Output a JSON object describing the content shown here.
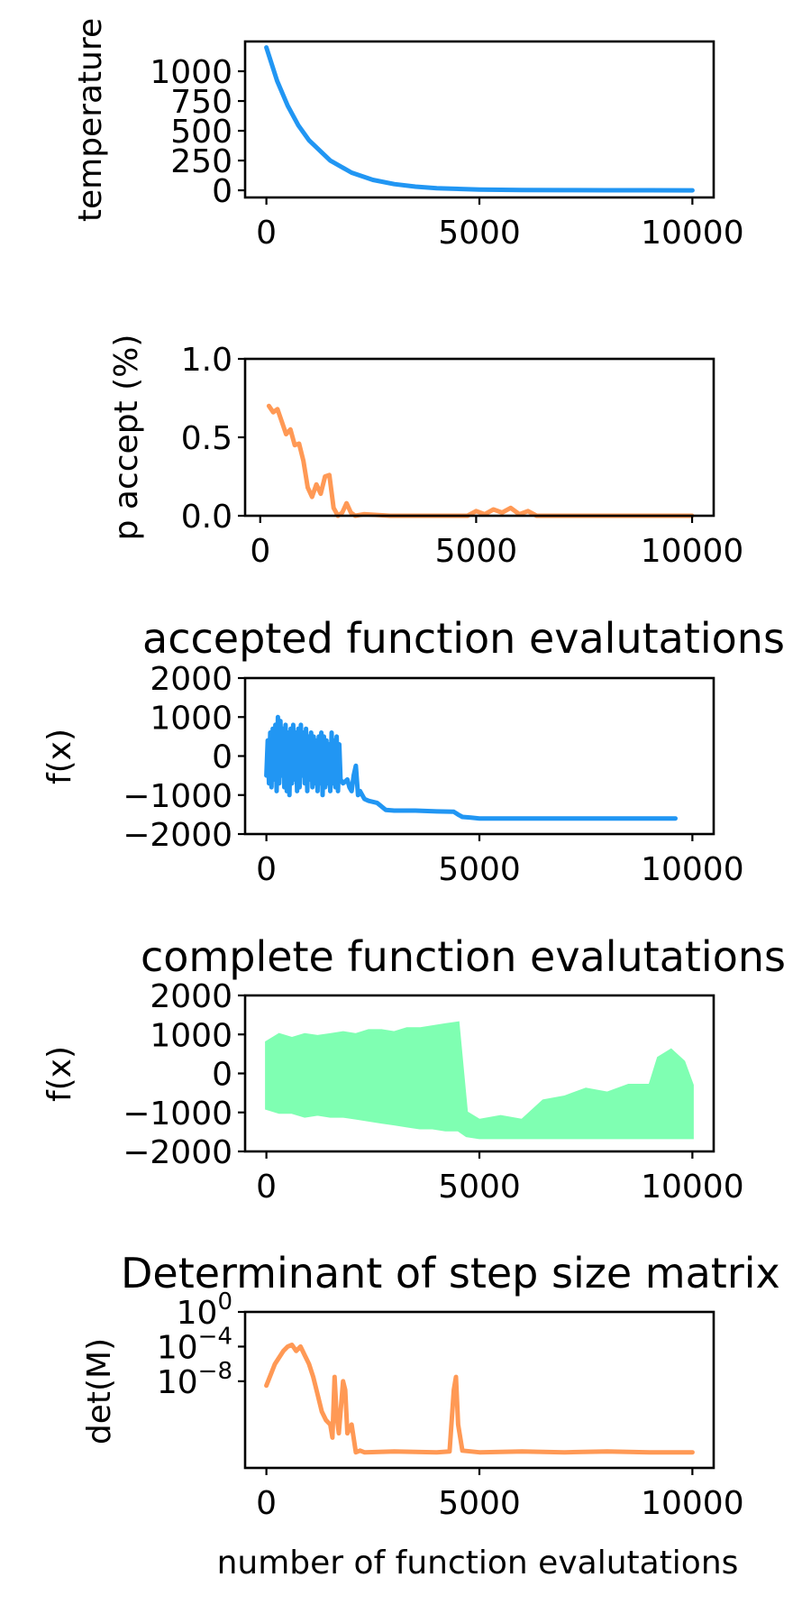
{
  "chart_data": [
    {
      "type": "line",
      "title": "",
      "xlabel": "",
      "ylabel": "temperature",
      "xlim": [
        -500,
        10500
      ],
      "ylim": [
        -60,
        1250
      ],
      "x_ticks": [
        0,
        5000,
        10000
      ],
      "x_tick_labels": [
        "0",
        "5000",
        "10000"
      ],
      "y_ticks": [
        0,
        250,
        500,
        750,
        1000
      ],
      "y_tick_labels": [
        "0",
        "250",
        "500",
        "750",
        "1000"
      ],
      "series": [
        {
          "color": "#2196F3",
          "x": [
            0,
            250,
            500,
            750,
            1000,
            1500,
            2000,
            2500,
            3000,
            3500,
            4000,
            5000,
            6000,
            7000,
            8000,
            9000,
            10000
          ],
          "y": [
            1200,
            920,
            710,
            545,
            420,
            250,
            148,
            88,
            52,
            31,
            18,
            7,
            3,
            1,
            0.5,
            0.2,
            0.1
          ]
        }
      ]
    },
    {
      "type": "line",
      "title": "",
      "xlabel": "",
      "ylabel": "p accept (%)",
      "xlim": [
        -350,
        10500
      ],
      "ylim": [
        0,
        1.0
      ],
      "x_ticks": [
        0,
        5000,
        10000
      ],
      "x_tick_labels": [
        "0",
        "5000",
        "10000"
      ],
      "y_ticks": [
        0.0,
        0.5,
        1.0
      ],
      "y_tick_labels": [
        "0.0",
        "0.5",
        "1.0"
      ],
      "series": [
        {
          "color": "#FF9955",
          "x": [
            200,
            300,
            400,
            500,
            600,
            700,
            800,
            900,
            1000,
            1100,
            1200,
            1300,
            1400,
            1500,
            1600,
            1700,
            1800,
            1900,
            2000,
            2100,
            2200,
            2400,
            3000,
            4000,
            4800,
            5000,
            5200,
            5400,
            5600,
            5800,
            6000,
            6200,
            6400,
            7000,
            8000,
            9000,
            10000
          ],
          "y": [
            0.7,
            0.66,
            0.68,
            0.6,
            0.52,
            0.55,
            0.45,
            0.46,
            0.35,
            0.18,
            0.12,
            0.2,
            0.14,
            0.25,
            0.26,
            0.05,
            0.0,
            0.02,
            0.08,
            0.02,
            0.0,
            0.01,
            0.0,
            0.0,
            0.0,
            0.03,
            0.01,
            0.04,
            0.02,
            0.05,
            0.01,
            0.03,
            0.0,
            0.0,
            0.0,
            0.0,
            0.0
          ]
        }
      ]
    },
    {
      "type": "line",
      "title": "accepted function evalutations",
      "xlabel": "",
      "ylabel": "f(x)",
      "xlim": [
        -500,
        10500
      ],
      "ylim": [
        -2000,
        2000
      ],
      "x_ticks": [
        0,
        5000,
        10000
      ],
      "x_tick_labels": [
        "0",
        "5000",
        "10000"
      ],
      "y_ticks": [
        -2000,
        -1000,
        0,
        1000,
        2000
      ],
      "y_tick_labels": [
        "−2000",
        "−1000",
        "0",
        "1000",
        "2000"
      ],
      "series": [
        {
          "color": "#2196F3",
          "x": [
            0,
            30,
            60,
            90,
            120,
            150,
            180,
            210,
            240,
            270,
            300,
            330,
            360,
            390,
            420,
            450,
            480,
            510,
            540,
            570,
            600,
            630,
            660,
            690,
            720,
            750,
            780,
            810,
            840,
            870,
            900,
            930,
            960,
            990,
            1020,
            1050,
            1080,
            1110,
            1140,
            1170,
            1200,
            1230,
            1260,
            1290,
            1320,
            1350,
            1380,
            1410,
            1440,
            1470,
            1500,
            1530,
            1560,
            1590,
            1620,
            1650,
            1680,
            1710,
            1740,
            1800,
            1900,
            1950,
            2000,
            2050,
            2100,
            2150,
            2200,
            2300,
            2400,
            2600,
            2800,
            3000,
            3500,
            4000,
            4400,
            4500,
            4600,
            4800,
            5000,
            6000,
            7000,
            8000,
            9000,
            9600
          ],
          "y": [
            -500,
            400,
            -700,
            600,
            -800,
            700,
            -600,
            800,
            -900,
            1000,
            -700,
            900,
            -500,
            700,
            -800,
            800,
            -900,
            600,
            -1000,
            700,
            -700,
            800,
            -600,
            600,
            -900,
            700,
            -800,
            800,
            -500,
            600,
            -700,
            700,
            -900,
            500,
            -600,
            600,
            -800,
            500,
            -700,
            400,
            -900,
            500,
            -700,
            600,
            -1000,
            500,
            -800,
            400,
            -700,
            300,
            -900,
            600,
            -700,
            400,
            -800,
            500,
            -900,
            300,
            -600,
            -700,
            -600,
            -800,
            -900,
            -500,
            -250,
            -1000,
            -900,
            -1100,
            -1150,
            -1200,
            -1380,
            -1400,
            -1400,
            -1420,
            -1430,
            -1500,
            -1560,
            -1580,
            -1600,
            -1600,
            -1600,
            -1600,
            -1600,
            -1600
          ]
        }
      ]
    },
    {
      "type": "line",
      "title": "complete function evalutations",
      "xlabel": "",
      "ylabel": "f(x)",
      "xlim": [
        -500,
        10500
      ],
      "ylim": [
        -2000,
        2000
      ],
      "x_ticks": [
        0,
        5000,
        10000
      ],
      "x_tick_labels": [
        "0",
        "5000",
        "10000"
      ],
      "y_ticks": [
        -2000,
        -1000,
        0,
        1000,
        2000
      ],
      "y_tick_labels": [
        "−2000",
        "−1000",
        "0",
        "1000",
        "2000"
      ],
      "series": [
        {
          "color": "#7FFFB2",
          "x": [
            0,
            300,
            600,
            900,
            1200,
            1500,
            1800,
            2100,
            2400,
            2700,
            3000,
            3300,
            3600,
            3900,
            4200,
            4500,
            4700,
            5000,
            5500,
            6000,
            6500,
            7000,
            7500,
            8000,
            8500,
            9000,
            9200,
            9500,
            9800,
            10000
          ],
          "y_max": [
            800,
            1000,
            900,
            1000,
            950,
            1000,
            1050,
            1000,
            1100,
            1100,
            1050,
            1150,
            1150,
            1200,
            1250,
            1300,
            -1000,
            -1200,
            -1100,
            -1200,
            -700,
            -600,
            -400,
            -500,
            -300,
            -300,
            400,
            600,
            300,
            -300
          ],
          "y_min": [
            -900,
            -1000,
            -1000,
            -1100,
            -1050,
            -1100,
            -1100,
            -1150,
            -1200,
            -1250,
            -1300,
            -1350,
            -1400,
            -1400,
            -1450,
            -1450,
            -1600,
            -1650,
            -1650,
            -1650,
            -1650,
            -1650,
            -1650,
            -1650,
            -1650,
            -1650,
            -1650,
            -1650,
            -1650,
            -1650
          ]
        }
      ]
    },
    {
      "type": "line",
      "title": "Determinant of step size matrix",
      "xlabel": "number of function evalutations",
      "ylabel": "det(M)",
      "yscale": "log",
      "xlim": [
        -500,
        10500
      ],
      "ylim_log10": [
        -18,
        0
      ],
      "x_ticks": [
        0,
        5000,
        10000
      ],
      "x_tick_labels": [
        "0",
        "5000",
        "10000"
      ],
      "y_ticks_log10": [
        -8,
        -4,
        0
      ],
      "y_tick_bases": [
        "10",
        "10",
        "10"
      ],
      "y_tick_exponents": [
        "−8",
        "−4",
        "0"
      ],
      "series": [
        {
          "color": "#FF9955",
          "x": [
            0,
            200,
            400,
            500,
            600,
            700,
            800,
            900,
            1000,
            1100,
            1200,
            1300,
            1400,
            1500,
            1550,
            1600,
            1650,
            1700,
            1800,
            1850,
            1900,
            2000,
            2100,
            2200,
            2300,
            3000,
            4000,
            4300,
            4400,
            4450,
            4500,
            4600,
            5000,
            6000,
            7000,
            8000,
            9000,
            10000
          ],
          "y_log10": [
            -8.5,
            -6,
            -4.5,
            -4,
            -3.8,
            -4.5,
            -4,
            -5,
            -6,
            -7.5,
            -9.5,
            -11.5,
            -12.5,
            -13,
            -14.5,
            -7.5,
            -12,
            -14,
            -8,
            -9,
            -14,
            -13,
            -16.2,
            -16,
            -16.2,
            -16.1,
            -16.2,
            -16.1,
            -9,
            -7.5,
            -13,
            -16,
            -16.2,
            -16.1,
            -16.2,
            -16.1,
            -16.2,
            -16.2
          ]
        }
      ]
    }
  ]
}
